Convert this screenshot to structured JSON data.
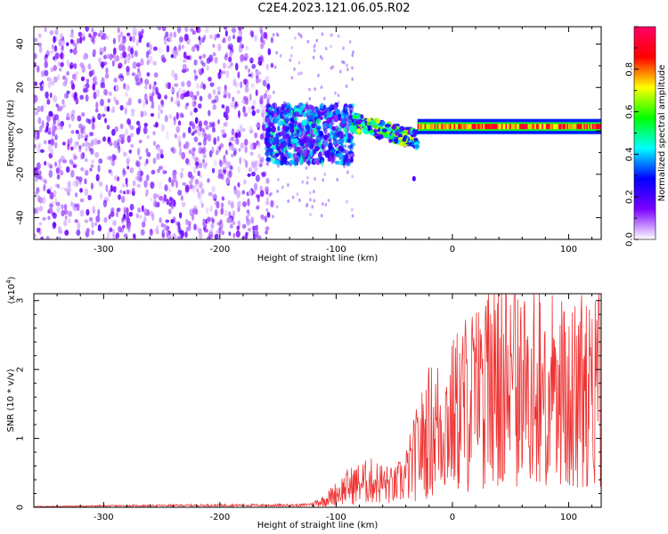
{
  "title": "C2E4.2023.121.06.05.R02",
  "chart_data": [
    {
      "type": "heatmap",
      "xlabel": "Height of straight line (km)",
      "ylabel": "Frequency (Hz)",
      "xlim": [
        -360,
        128
      ],
      "ylim": [
        -50,
        48
      ],
      "x_ticks": [
        -300,
        -200,
        -100,
        0,
        100
      ],
      "y_ticks": [
        -40,
        -20,
        0,
        20,
        40
      ],
      "grid": false,
      "colorbar": {
        "label": "Normalized spectral amplitude",
        "range": [
          0.0,
          1.0
        ],
        "ticks": [
          0.0,
          0.2,
          0.4,
          0.6,
          0.8
        ],
        "colormap": [
          "#ffffff",
          "#7b00ff",
          "#0000ff",
          "#00ffff",
          "#00ff00",
          "#ffff00",
          "#ff0000",
          "#ff0066"
        ]
      },
      "features": [
        {
          "x_range": [
            -360,
            -155
          ],
          "freq_range": [
            -50,
            48
          ],
          "amplitude": 0.1
        },
        {
          "x_range": [
            -160,
            -85
          ],
          "freq_range": [
            -15,
            12
          ],
          "amplitude": 0.25
        },
        {
          "x_range": [
            -85,
            -30
          ],
          "freq_center_start": 4,
          "freq_center_end": -4,
          "amplitude": 0.45
        },
        {
          "x_range": [
            -30,
            128
          ],
          "freq_center": 2,
          "amplitude": 0.85
        }
      ]
    },
    {
      "type": "line",
      "xlabel": "Height of straight line (km)",
      "ylabel": "SNR (10 * v/v)",
      "y_multiplier": "(x10",
      "y_multiplier_exp": "4",
      "y_multiplier_close": ")",
      "xlim": [
        -360,
        128
      ],
      "ylim": [
        0,
        3.1
      ],
      "x_ticks": [
        -300,
        -200,
        -100,
        0,
        100
      ],
      "y_ticks": [
        0,
        1,
        2,
        3
      ],
      "grid": false,
      "series": [
        {
          "color": "#ee3333",
          "x": [
            -360,
            -300,
            -200,
            -130,
            -120,
            -110,
            -100,
            -90,
            -80,
            -70,
            -60,
            -50,
            -40,
            -30,
            -20,
            -10,
            0,
            10,
            20,
            30,
            40,
            45,
            50,
            60,
            70,
            80,
            90,
            100,
            110,
            120,
            125,
            128
          ],
          "y": [
            0.01,
            0.02,
            0.03,
            0.03,
            0.05,
            0.1,
            0.2,
            0.3,
            0.35,
            0.38,
            0.35,
            0.3,
            0.45,
            0.8,
            1.1,
            1.2,
            1.3,
            1.5,
            1.6,
            1.7,
            2.1,
            2.6,
            1.9,
            1.7,
            1.9,
            1.8,
            1.7,
            1.6,
            1.7,
            1.6,
            1.9,
            1.8
          ]
        }
      ]
    }
  ]
}
